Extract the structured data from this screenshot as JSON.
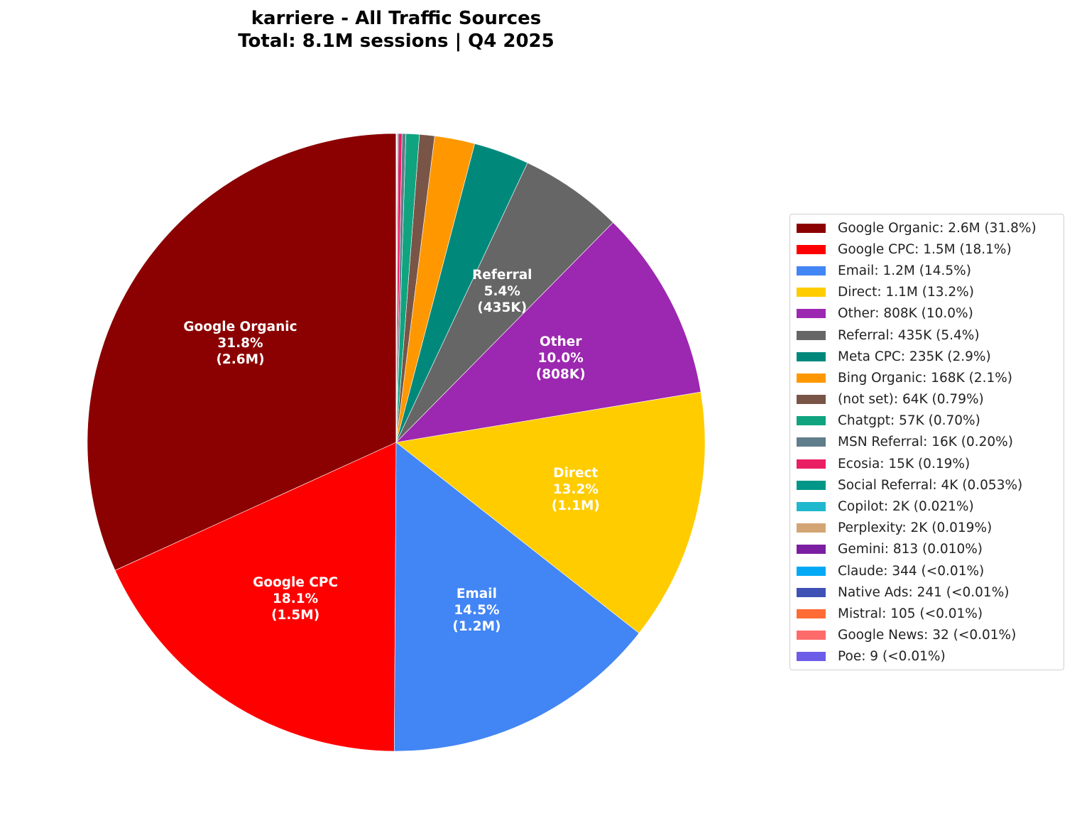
{
  "chart_data": {
    "type": "pie",
    "title": "karriere - All Traffic Sources",
    "subtitle": "Total: 8.1M sessions | Q4 2025",
    "total_sessions": 8100000,
    "start_angle_deg": 90,
    "direction": "counterclockwise",
    "legend_position": "right",
    "slices": [
      {
        "name": "Google Organic",
        "value_label": "2.6M",
        "pct": 31.8,
        "pct_label": "31.8%",
        "color": "#8B0000",
        "inner_label": true
      },
      {
        "name": "Google CPC",
        "value_label": "1.5M",
        "pct": 18.1,
        "pct_label": "18.1%",
        "color": "#FF0000",
        "inner_label": true
      },
      {
        "name": "Email",
        "value_label": "1.2M",
        "pct": 14.5,
        "pct_label": "14.5%",
        "color": "#4285F4",
        "inner_label": true
      },
      {
        "name": "Direct",
        "value_label": "1.1M",
        "pct": 13.2,
        "pct_label": "13.2%",
        "color": "#FFCC00",
        "inner_label": true
      },
      {
        "name": "Other",
        "value_label": "808K",
        "pct": 10.0,
        "pct_label": "10.0%",
        "color": "#9C27B0",
        "inner_label": true
      },
      {
        "name": "Referral",
        "value_label": "435K",
        "pct": 5.4,
        "pct_label": "5.4%",
        "color": "#666666",
        "inner_label": true
      },
      {
        "name": "Meta CPC",
        "value_label": "235K",
        "pct": 2.9,
        "pct_label": "2.9%",
        "color": "#00897B",
        "inner_label": false
      },
      {
        "name": "Bing Organic",
        "value_label": "168K",
        "pct": 2.1,
        "pct_label": "2.1%",
        "color": "#FF9800",
        "inner_label": false
      },
      {
        "name": "(not set)",
        "value_label": "64K",
        "pct": 0.79,
        "pct_label": "0.79%",
        "color": "#795548",
        "inner_label": false
      },
      {
        "name": "Chatgpt",
        "value_label": "57K",
        "pct": 0.7,
        "pct_label": "0.70%",
        "color": "#10A37F",
        "inner_label": false
      },
      {
        "name": "MSN Referral",
        "value_label": "16K",
        "pct": 0.2,
        "pct_label": "0.20%",
        "color": "#607D8B",
        "inner_label": false
      },
      {
        "name": "Ecosia",
        "value_label": "15K",
        "pct": 0.19,
        "pct_label": "0.19%",
        "color": "#E91E63",
        "inner_label": false
      },
      {
        "name": "Social Referral",
        "value_label": "4K",
        "pct": 0.053,
        "pct_label": "0.053%",
        "color": "#009688",
        "inner_label": false
      },
      {
        "name": "Copilot",
        "value_label": "2K",
        "pct": 0.021,
        "pct_label": "0.021%",
        "color": "#20B8CD",
        "inner_label": false
      },
      {
        "name": "Perplexity",
        "value_label": "2K",
        "pct": 0.019,
        "pct_label": "0.019%",
        "color": "#D4A574",
        "inner_label": false
      },
      {
        "name": "Gemini",
        "value_label": "813",
        "pct": 0.01,
        "pct_label": "0.010%",
        "color": "#7B1FA2",
        "inner_label": false
      },
      {
        "name": "Claude",
        "value_label": "344",
        "sessions": 344,
        "pct_label": "<0.01%",
        "color": "#03A9F4",
        "inner_label": false
      },
      {
        "name": "Native Ads",
        "value_label": "241",
        "sessions": 241,
        "pct_label": "<0.01%",
        "color": "#3F51B5",
        "inner_label": false
      },
      {
        "name": "Mistral",
        "value_label": "105",
        "sessions": 105,
        "pct_label": "<0.01%",
        "color": "#FF6B35",
        "inner_label": false
      },
      {
        "name": "Google News",
        "value_label": "32",
        "sessions": 32,
        "pct_label": "<0.01%",
        "color": "#FF6B6B",
        "inner_label": false
      },
      {
        "name": "Poe",
        "value_label": "9",
        "sessions": 9,
        "pct_label": "<0.01%",
        "color": "#6C5CE7",
        "inner_label": false
      }
    ]
  }
}
